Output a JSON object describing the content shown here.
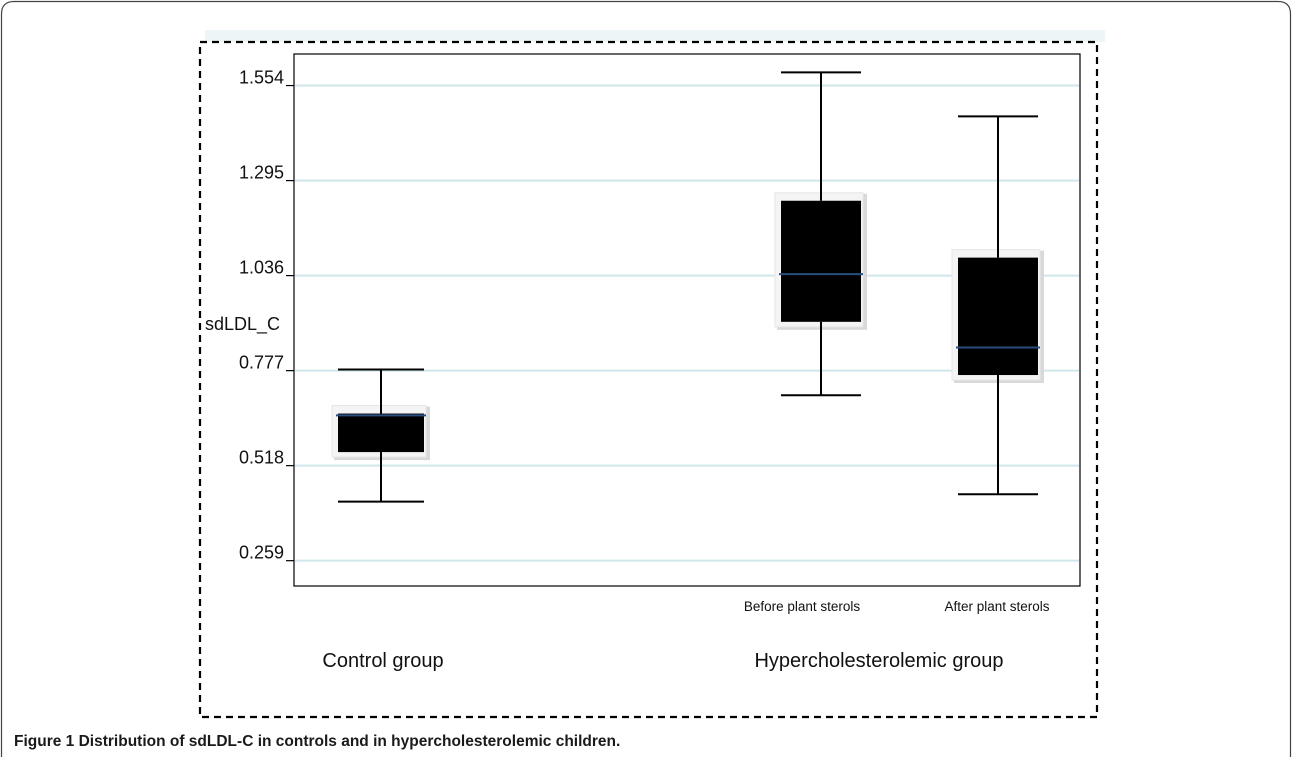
{
  "figure": {
    "caption_label": "Figure 1",
    "caption_text": "Distribution of sdLDL-C in controls and in hypercholesterolemic children."
  },
  "chart_data": {
    "type": "box",
    "title": "",
    "ylabel": "sdLDL_C",
    "xlabel": "",
    "ylim": [
      0.19,
      1.64
    ],
    "y_ticks": [
      "0.259",
      "0.518",
      "0.777",
      "1.036",
      "1.295",
      "1.554"
    ],
    "grid": true,
    "categories": [
      "",
      "Before plant sterols",
      "After plant sterols"
    ],
    "groups": [
      "Control group",
      "Hypercholesterolemic group"
    ],
    "boxes": [
      {
        "category": "",
        "group": "Control group",
        "whisker_low": 0.42,
        "q1": 0.555,
        "median": 0.655,
        "q3": 0.66,
        "whisker_high": 0.78
      },
      {
        "category": "Before plant sterols",
        "group": "Hypercholesterolemic group",
        "whisker_low": 0.71,
        "q1": 0.91,
        "median": 1.04,
        "q3": 1.24,
        "whisker_high": 1.59
      },
      {
        "category": "After plant sterols",
        "group": "Hypercholesterolemic group",
        "whisker_low": 0.44,
        "q1": 0.765,
        "median": 0.84,
        "q3": 1.085,
        "whisker_high": 1.47
      }
    ],
    "colors": {
      "box_fill": "#000000",
      "median_line": "#2a4e80",
      "grid": "#cfe6ea",
      "shadow": "#d9d9d9"
    }
  }
}
